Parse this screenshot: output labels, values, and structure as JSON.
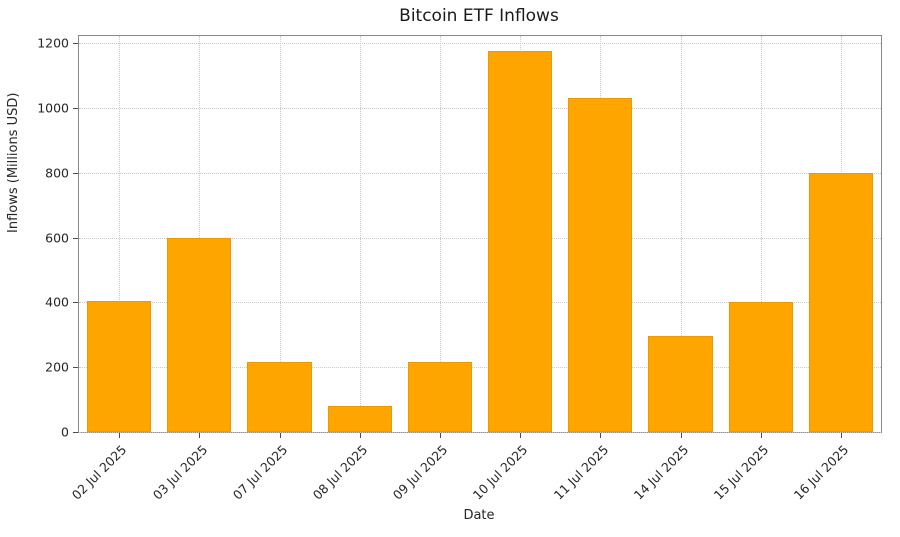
{
  "chart_data": {
    "type": "bar",
    "title": "Bitcoin ETF Inflows",
    "xlabel": "Date",
    "ylabel": "Inflows (Millions USD)",
    "categories": [
      "02 Jul 2025",
      "03 Jul 2025",
      "07 Jul 2025",
      "08 Jul 2025",
      "09 Jul 2025",
      "10 Jul 2025",
      "11 Jul 2025",
      "14 Jul 2025",
      "15 Jul 2025",
      "16 Jul 2025"
    ],
    "values": [
      405,
      600,
      215,
      80,
      215,
      1175,
      1030,
      295,
      400,
      800
    ],
    "ylim": [
      0,
      1222
    ],
    "yticks": [
      0,
      200,
      400,
      600,
      800,
      1000,
      1200
    ],
    "bar_color": "#FFA500",
    "bar_edge_color": "#ED9900",
    "grid": "dotted",
    "legend": "none"
  }
}
